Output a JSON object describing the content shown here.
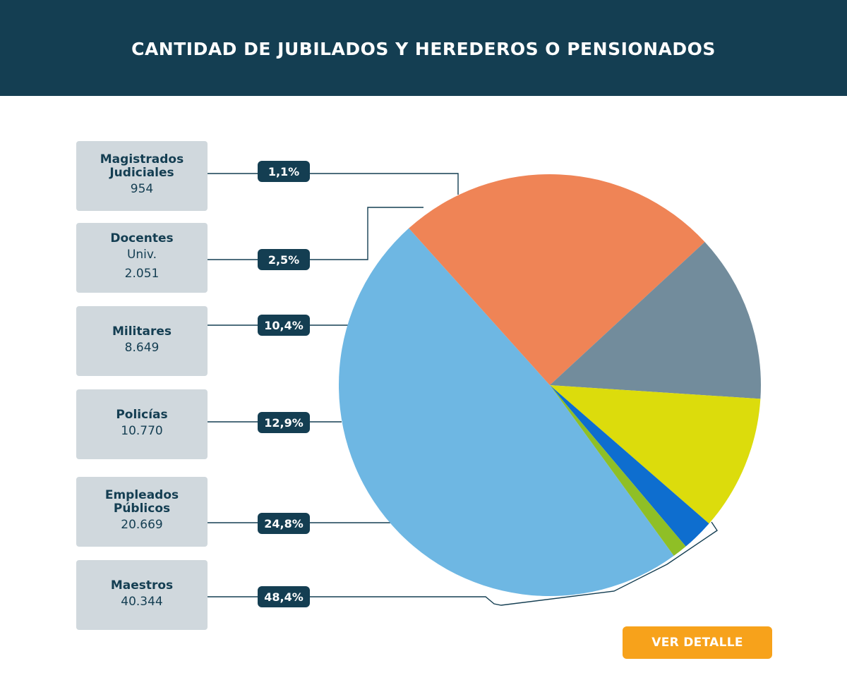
{
  "header": {
    "title": "CANTIDAD DE JUBILADOS Y HEREDEROS O PENSIONADOS"
  },
  "chart_data": {
    "type": "pie",
    "title": "CANTIDAD DE JUBILADOS Y HEREDEROS O PENSIONADOS",
    "categories": [
      "Maestros",
      "Empleados Públicos",
      "Policías",
      "Militares",
      "Docentes Univ.",
      "Magistrados Judiciales"
    ],
    "values": [
      40344,
      20669,
      10770,
      8649,
      2051,
      954
    ],
    "percent_labels": [
      "48,4%",
      "24,8%",
      "12,9%",
      "10,4%",
      "2,5%",
      "1,1%"
    ],
    "colors": [
      "#6eb7e3",
      "#ef8456",
      "#728c9c",
      "#dcdc0c",
      "#0e6ecf",
      "#8fbf26"
    ]
  },
  "labels": [
    {
      "name": "Magistrados\nJudiciales",
      "sub": "",
      "value": "954",
      "pct": "1,1%"
    },
    {
      "name": "Docentes",
      "sub": "Univ.",
      "value": "2.051",
      "pct": "2,5%"
    },
    {
      "name": "Militares",
      "sub": "",
      "value": "8.649",
      "pct": "10,4%"
    },
    {
      "name": "Policías",
      "sub": "",
      "value": "10.770",
      "pct": "12,9%"
    },
    {
      "name": "Empleados\nPúblicos",
      "sub": "",
      "value": "20.669",
      "pct": "24,8%"
    },
    {
      "name": "Maestros",
      "sub": "",
      "value": "40.344",
      "pct": "48,4%"
    }
  ],
  "button": {
    "label": "VER DETALLE"
  }
}
